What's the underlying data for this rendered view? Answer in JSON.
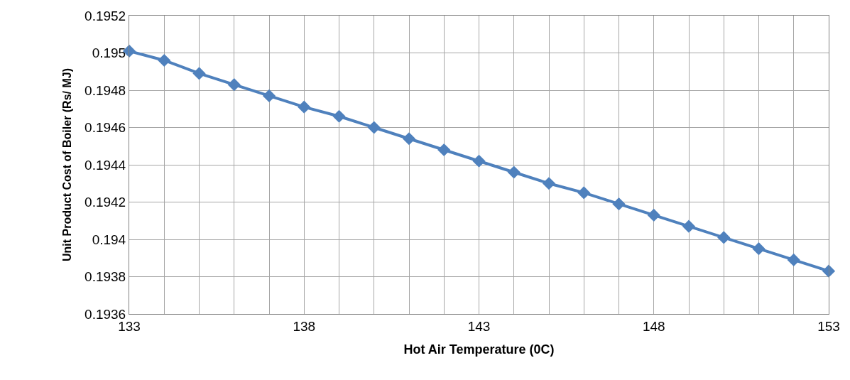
{
  "chart_data": {
    "type": "line",
    "xlabel": "Hot Air Temperature (0C)",
    "ylabel": "Unit Product Cost of Boiler (Rs/ MJ)",
    "x": [
      133,
      134,
      135,
      136,
      137,
      138,
      139,
      140,
      141,
      142,
      143,
      144,
      145,
      146,
      147,
      148,
      149,
      150,
      151,
      152,
      153
    ],
    "series": [
      {
        "color": "#4f81bd",
        "values": [
          0.19501,
          0.19496,
          0.19489,
          0.19483,
          0.19477,
          0.19471,
          0.19466,
          0.1946,
          0.19454,
          0.19448,
          0.19442,
          0.19436,
          0.1943,
          0.19425,
          0.19419,
          0.19413,
          0.19407,
          0.19401,
          0.19395,
          0.19389,
          0.19383
        ]
      }
    ],
    "xlim": [
      133,
      153
    ],
    "xticks": [
      133,
      {
        "value": 134,
        "label": null
      },
      {
        "value": 135,
        "label": null
      },
      {
        "value": 136,
        "label": null
      },
      {
        "value": 137,
        "label": null
      },
      138,
      {
        "value": 139,
        "label": null
      },
      {
        "value": 140,
        "label": null
      },
      {
        "value": 141,
        "label": null
      },
      {
        "value": 142,
        "label": null
      },
      143,
      {
        "value": 144,
        "label": null
      },
      {
        "value": 145,
        "label": null
      },
      {
        "value": 146,
        "label": null
      },
      {
        "value": 147,
        "label": null
      },
      148,
      {
        "value": 149,
        "label": null
      },
      {
        "value": 150,
        "label": null
      },
      {
        "value": 151,
        "label": null
      },
      {
        "value": 152,
        "label": null
      },
      153
    ],
    "ylim": [
      0.1936,
      0.1952
    ],
    "yticks": [
      0.1936,
      0.1938,
      0.194,
      0.1942,
      0.1944,
      0.1946,
      0.1948,
      0.195,
      0.1952
    ],
    "grid": true,
    "marker": "diamond",
    "line_style": "solid"
  }
}
